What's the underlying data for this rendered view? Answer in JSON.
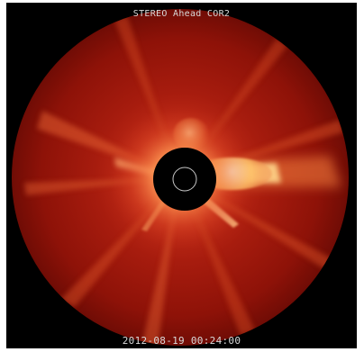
{
  "image": {
    "title": "STEREO Ahead COR2",
    "timestamp": "2012-08-19 00:24:00"
  },
  "colors": {
    "background": "#000000",
    "corona_red": "#9a1208",
    "corona_bright": "#ffd27a",
    "occulter": "#000000",
    "sun_outline": "#c8c8c8",
    "label_text": "#d9d9d9"
  }
}
